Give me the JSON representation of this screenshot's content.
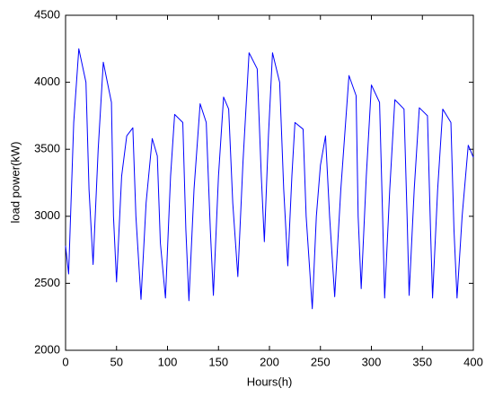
{
  "chart_data": {
    "type": "line",
    "xlabel": "Hours(h)",
    "ylabel": "load power(kW)",
    "color": "#0000ff",
    "x": [
      0,
      3,
      8,
      13,
      20,
      23,
      27,
      32,
      37,
      45,
      47,
      50,
      55,
      60,
      66,
      69,
      74,
      79,
      85,
      90,
      93,
      98,
      103,
      107,
      115,
      118,
      121,
      126,
      132,
      138,
      142,
      145,
      150,
      155,
      160,
      164,
      169,
      174,
      180,
      188,
      192,
      195,
      199,
      203,
      210,
      214,
      218,
      222,
      225,
      233,
      236,
      242,
      246,
      250,
      255,
      259,
      264,
      270,
      278,
      285,
      287,
      290,
      295,
      300,
      308,
      311,
      313,
      318,
      323,
      332,
      335,
      337,
      342,
      347,
      355,
      358,
      360,
      365,
      370,
      378,
      381,
      384,
      389,
      395,
      400
    ],
    "values": [
      2780,
      2570,
      3700,
      4250,
      4000,
      3200,
      2640,
      3500,
      4150,
      3850,
      3000,
      2510,
      3300,
      3600,
      3660,
      3000,
      2380,
      3100,
      3580,
      3450,
      2800,
      2390,
      3300,
      3760,
      3700,
      2900,
      2370,
      3200,
      3840,
      3700,
      2900,
      2410,
      3300,
      3890,
      3800,
      3100,
      2550,
      3400,
      4220,
      4100,
      3300,
      2810,
      3600,
      4220,
      4000,
      3200,
      2630,
      3300,
      3700,
      3650,
      3000,
      2310,
      3000,
      3380,
      3600,
      3000,
      2400,
      3200,
      4050,
      3900,
      3000,
      2460,
      3300,
      3980,
      3850,
      3000,
      2390,
      3200,
      3870,
      3800,
      3000,
      2410,
      3200,
      3810,
      3750,
      2900,
      2390,
      3200,
      3800,
      3700,
      2900,
      2390,
      3000,
      3530,
      3440
    ],
    "xlim": [
      0,
      400
    ],
    "xticks": [
      0,
      50,
      100,
      150,
      200,
      250,
      300,
      350,
      400
    ],
    "ylim": [
      2000,
      4500
    ],
    "yticks": [
      2000,
      2500,
      3000,
      3500,
      4000,
      4500
    ],
    "grid": false
  }
}
